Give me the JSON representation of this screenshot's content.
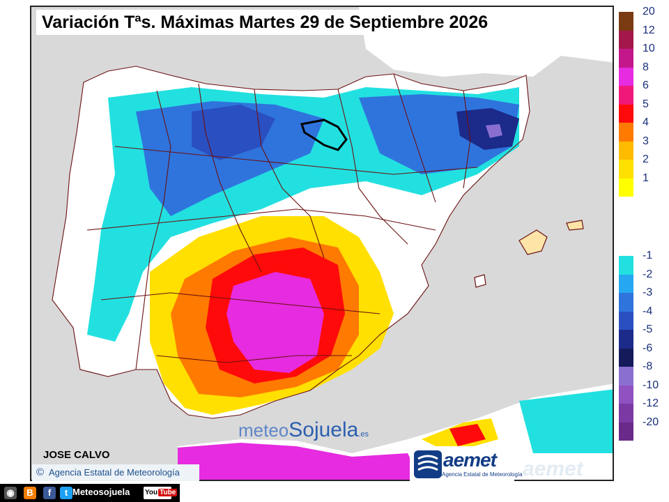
{
  "title": "Variación Tªs. Máximas Martes 29 de Septiembre 2026",
  "author": "JOSE CALVO",
  "agency_credit": "Agencia Estatal de Meteorología",
  "watermark": {
    "part1": "meteo",
    "part2": "Sojuela",
    "suffix": ".es"
  },
  "aemet_logo": {
    "word": "aemet",
    "subtitle": "Agencia Estatal de Meteorología"
  },
  "social": {
    "name": "Meteosojuela",
    "youtube": "You",
    "youtube_tube": "Tube"
  },
  "legend": {
    "positive": [
      {
        "label": "20",
        "color": "#7a3b12"
      },
      {
        "label": "12",
        "color": "#a3174a"
      },
      {
        "label": "10",
        "color": "#c4178c"
      },
      {
        "label": "8",
        "color": "#e62be0"
      },
      {
        "label": "6",
        "color": "#f0197a"
      },
      {
        "label": "5",
        "color": "#ff0a0a"
      },
      {
        "label": "4",
        "color": "#ff7a00"
      },
      {
        "label": "3",
        "color": "#ffbb00"
      },
      {
        "label": "2",
        "color": "#ffe000"
      },
      {
        "label": "1",
        "color": "#ffff00"
      }
    ],
    "negative": [
      {
        "label": "-1",
        "color": "#22e0e0"
      },
      {
        "label": "-2",
        "color": "#25a8f0"
      },
      {
        "label": "-3",
        "color": "#2f74dd"
      },
      {
        "label": "-4",
        "color": "#2a4fc0"
      },
      {
        "label": "-5",
        "color": "#1c2a8a"
      },
      {
        "label": "-6",
        "color": "#141a5a"
      },
      {
        "label": "-8",
        "color": "#8a6fd0"
      },
      {
        "label": "-10",
        "color": "#8f52c0"
      },
      {
        "label": "-12",
        "color": "#7b3aa3"
      },
      {
        "label": "-20",
        "color": "#6a2a8a"
      }
    ]
  },
  "colors": {
    "sea": "#d9d9d9",
    "land": "#ffffff",
    "borders": "#6b1010"
  }
}
